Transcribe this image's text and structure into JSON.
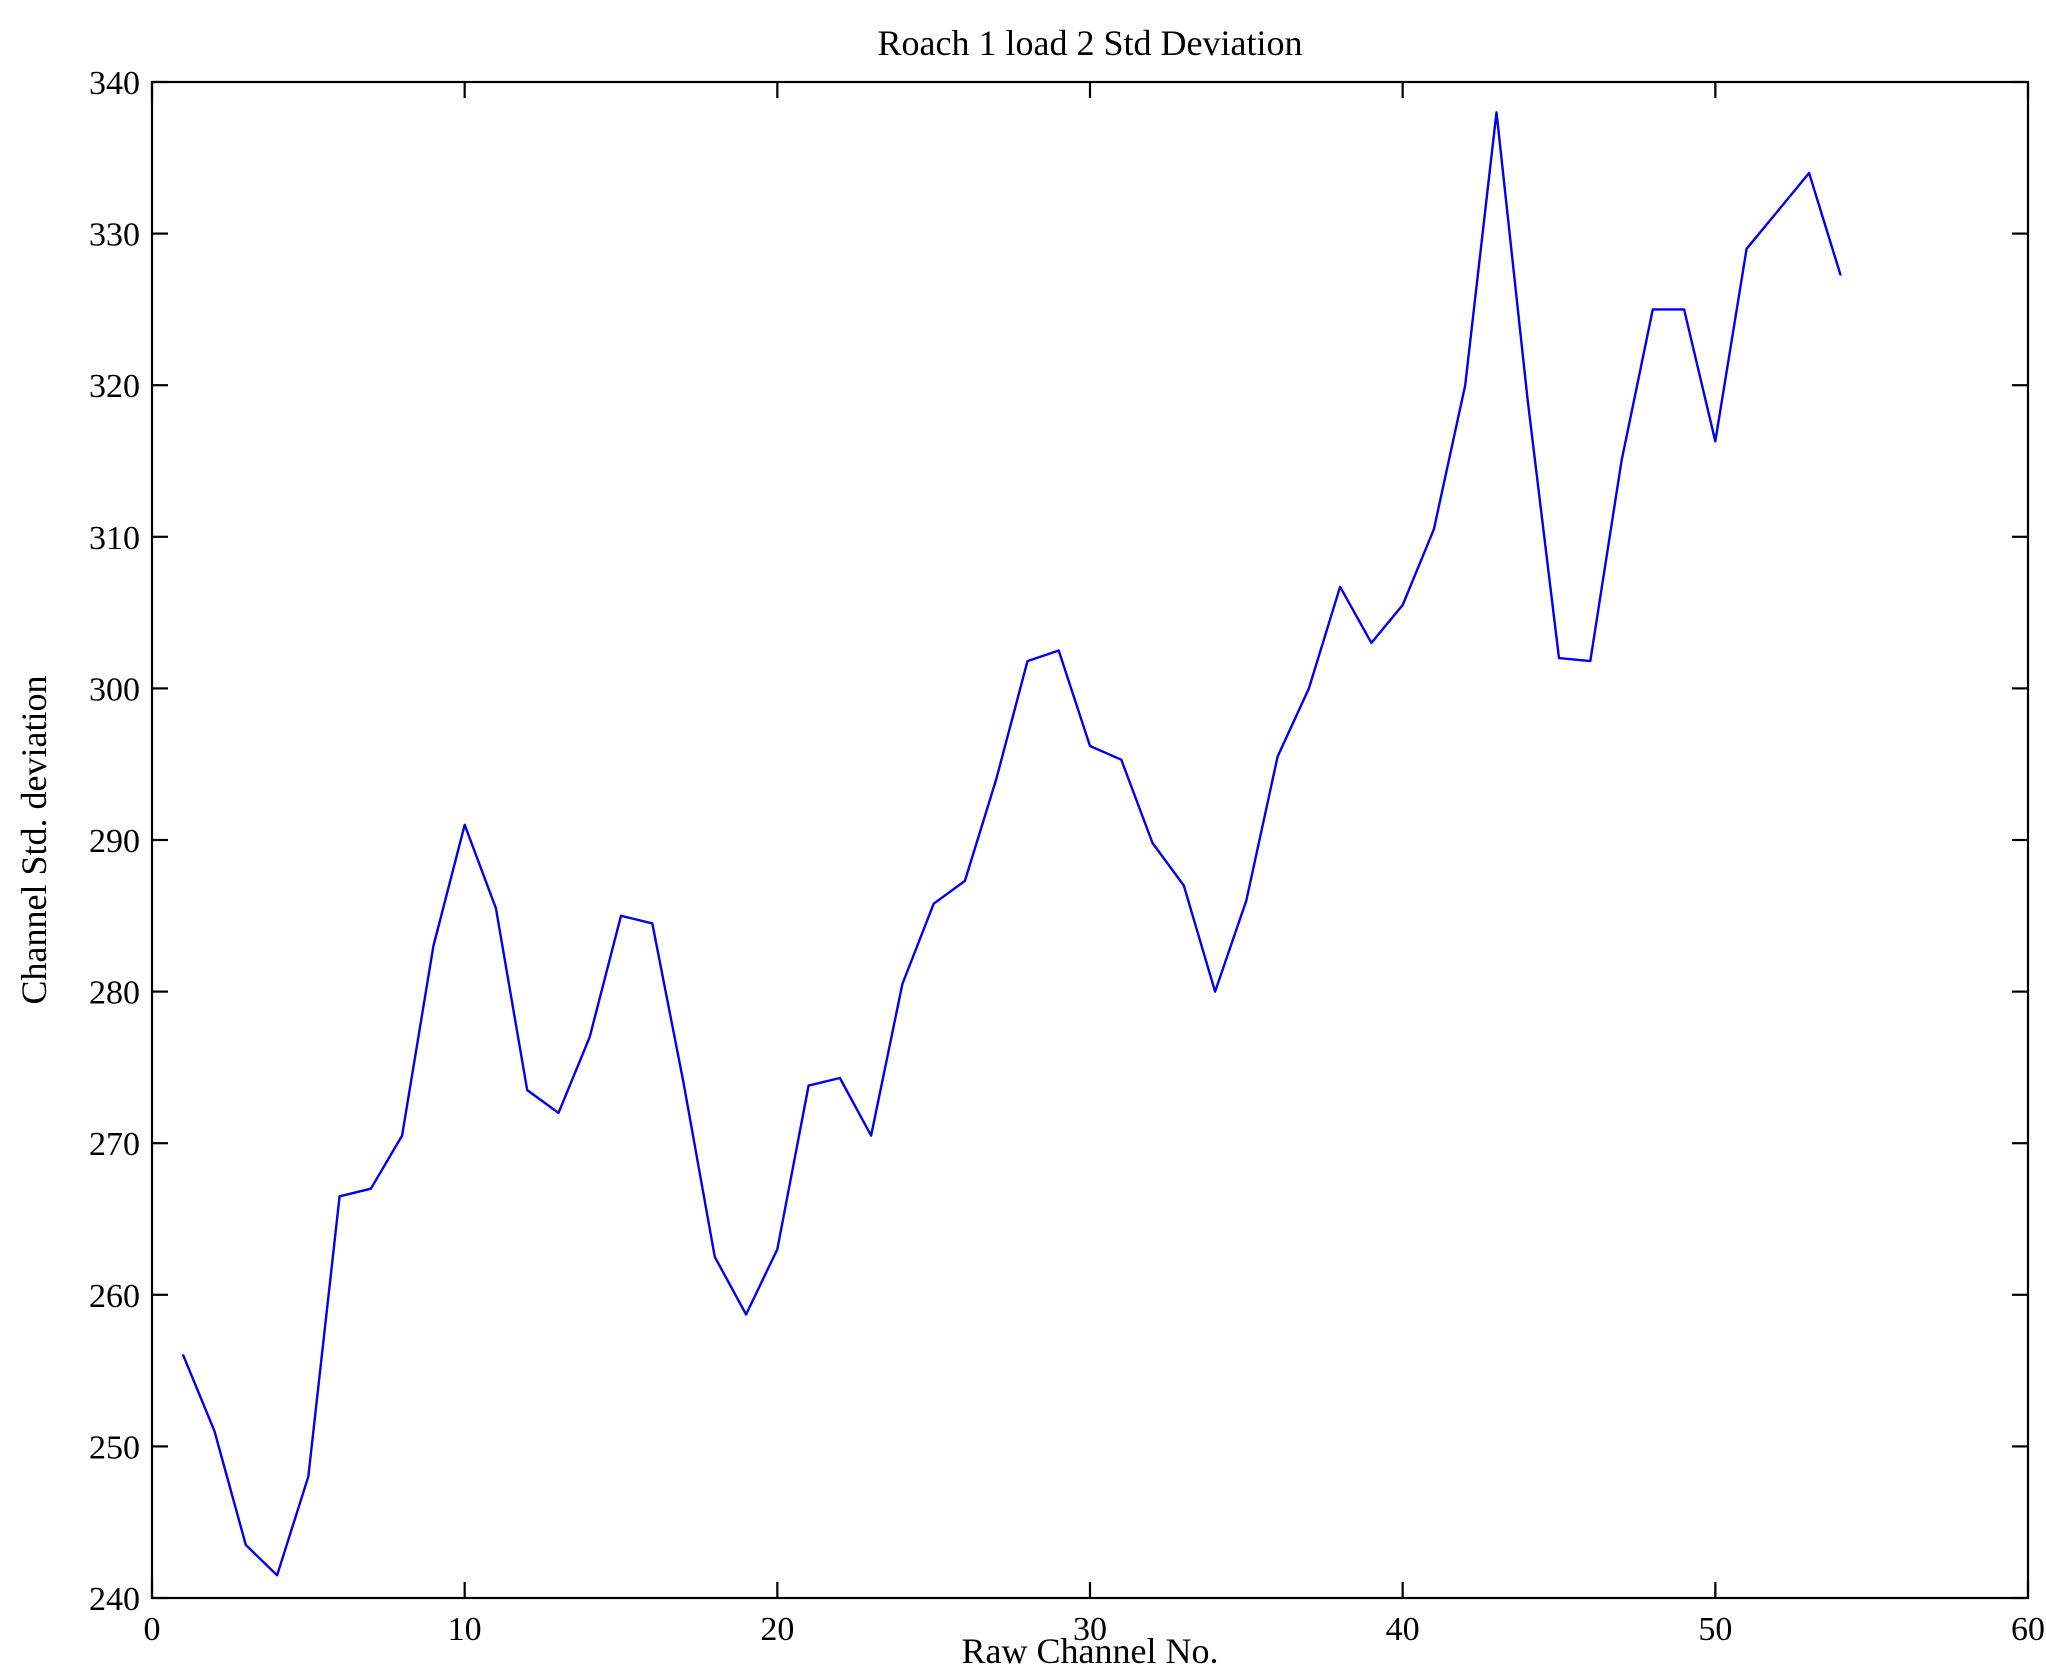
{
  "chart_data": {
    "type": "line",
    "title": "Roach 1 load 2 Std Deviation",
    "xlabel": "Raw Channel No.",
    "ylabel": "Channel Std. deviation",
    "xlim": [
      0,
      60
    ],
    "ylim": [
      240,
      340
    ],
    "xticks": [
      0,
      10,
      20,
      30,
      40,
      50,
      60
    ],
    "yticks": [
      240,
      250,
      260,
      270,
      280,
      290,
      300,
      310,
      320,
      330,
      340
    ],
    "grid": false,
    "legend": null,
    "line_color": "#0000f0",
    "axis_color": "#000000",
    "x": [
      1,
      2,
      3,
      4,
      5,
      6,
      7,
      8,
      9,
      10,
      11,
      12,
      13,
      14,
      15,
      16,
      17,
      18,
      19,
      20,
      21,
      22,
      23,
      24,
      25,
      26,
      27,
      28,
      29,
      30,
      31,
      32,
      33,
      34,
      35,
      36,
      37,
      38,
      39,
      40,
      41,
      42,
      43,
      44,
      45,
      46,
      47,
      48,
      49,
      50,
      51,
      52,
      53,
      54
    ],
    "values": [
      256,
      251,
      243.5,
      241.5,
      248,
      266.5,
      267,
      270.5,
      283,
      291,
      285.5,
      273.5,
      272,
      277,
      285,
      284.5,
      274,
      262.5,
      258.7,
      263,
      273.8,
      274.3,
      270.5,
      280.5,
      285.8,
      287.3,
      294,
      301.8,
      302.5,
      296.2,
      295.3,
      289.8,
      287,
      280,
      286,
      295.5,
      300,
      306.7,
      303,
      305.5,
      310.5,
      320,
      338,
      319,
      302,
      301.8,
      315,
      325,
      325,
      316.3,
      329,
      331.5,
      334,
      327.3
    ]
  }
}
